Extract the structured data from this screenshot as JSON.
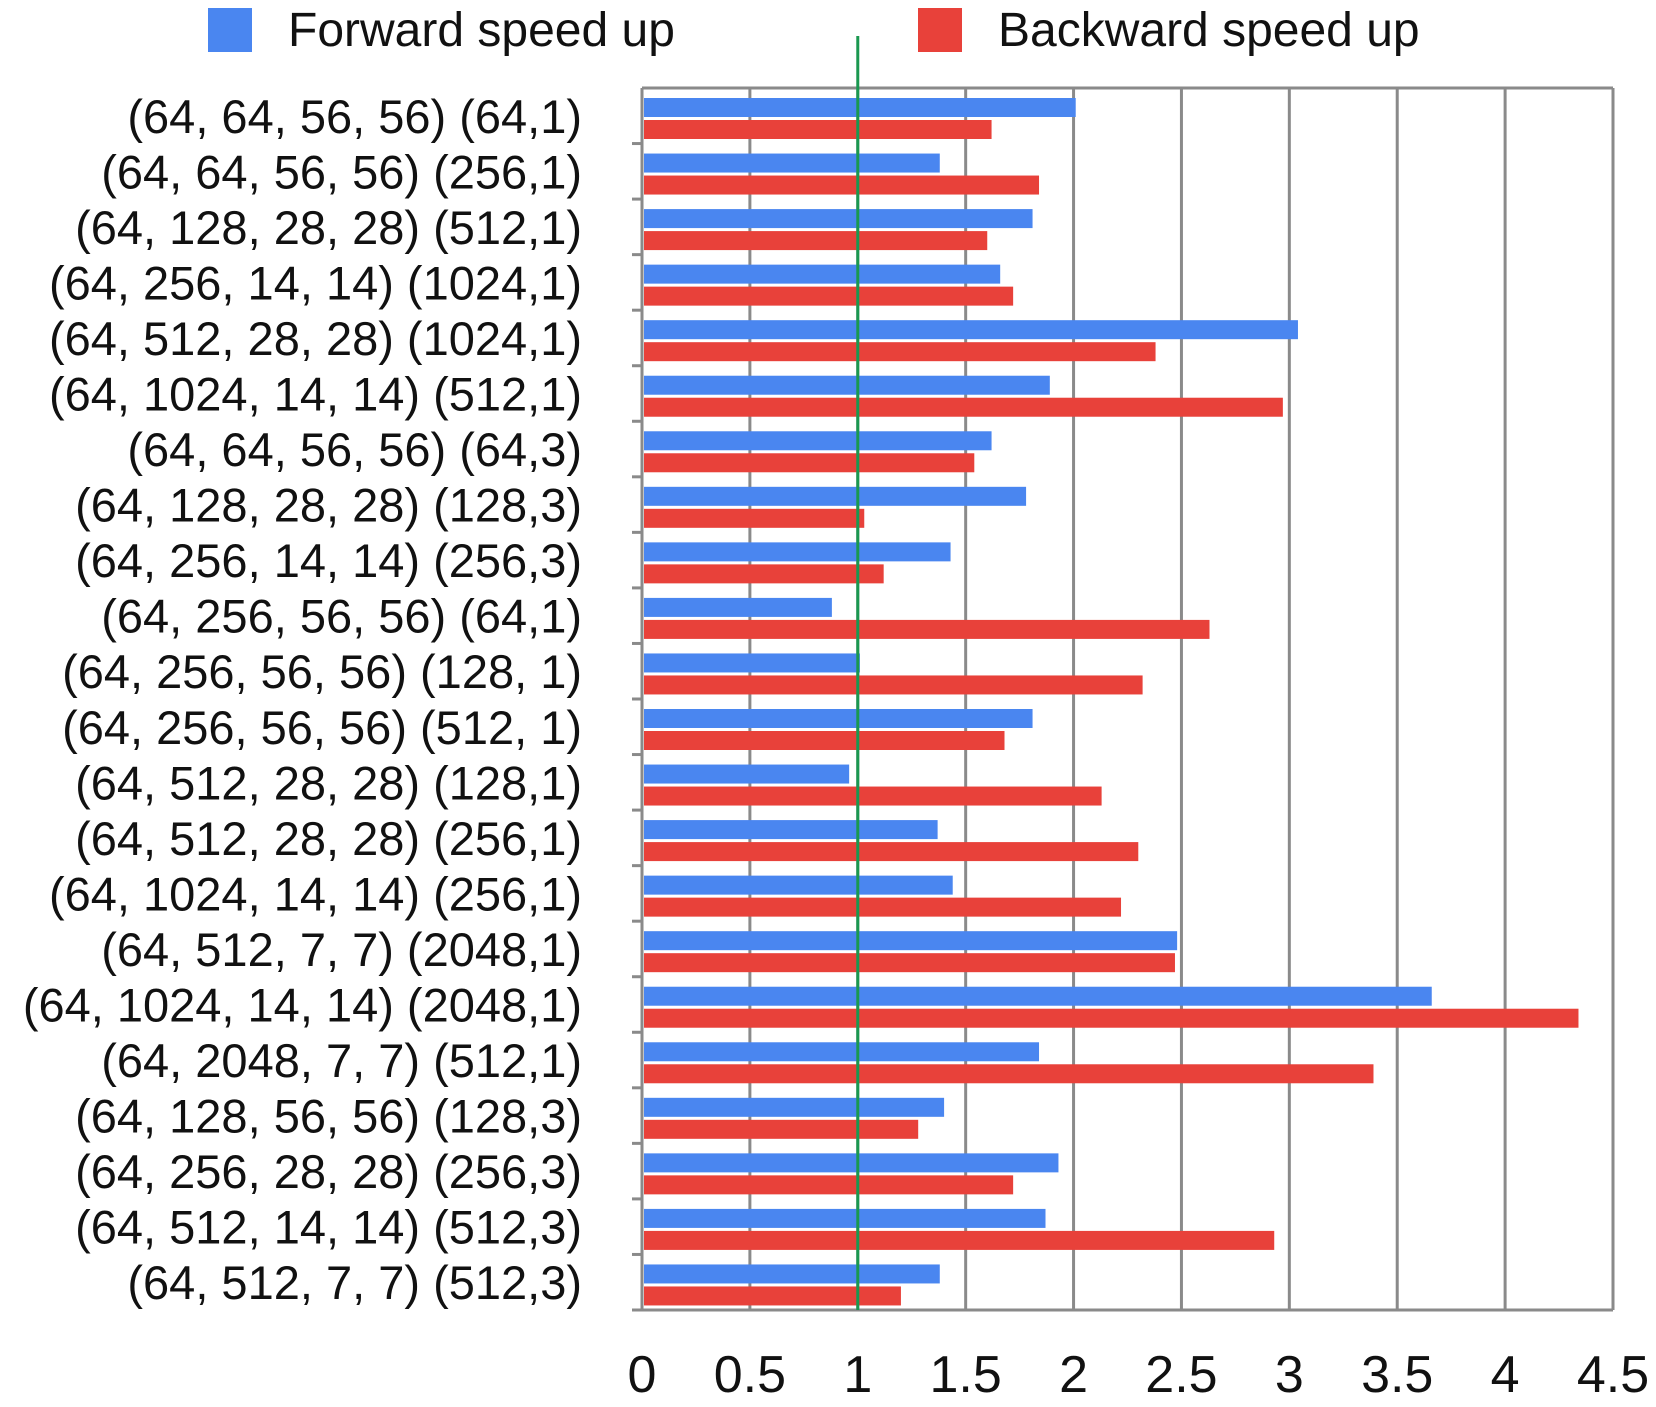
{
  "chart_data": {
    "type": "bar",
    "orientation": "horizontal",
    "title": "",
    "xlabel": "",
    "ylabel": "",
    "xlim": [
      0,
      4.5
    ],
    "xticks": [
      "0",
      "0.5",
      "1",
      "1.5",
      "2",
      "2.5",
      "3",
      "3.5",
      "4",
      "4.5"
    ],
    "grid": "vertical",
    "reference_line": {
      "x": 1,
      "color": "#1a9850"
    },
    "legend_position": "top",
    "categories": [
      "(64, 64, 56, 56) (64,1)",
      "(64, 64, 56, 56) (256,1)",
      "(64, 128, 28, 28) (512,1)",
      "(64, 256, 14, 14) (1024,1)",
      "(64, 512, 28, 28) (1024,1)",
      "(64, 1024, 14, 14) (512,1)",
      "(64, 64, 56, 56) (64,3)",
      "(64, 128, 28, 28) (128,3)",
      "(64, 256, 14, 14) (256,3)",
      "(64, 256, 56, 56) (64,1)",
      "(64, 256, 56, 56) (128, 1)",
      "(64, 256, 56, 56) (512, 1)",
      "(64, 512, 28, 28) (128,1)",
      "(64, 512, 28, 28) (256,1)",
      "(64, 1024, 14, 14) (256,1)",
      "(64, 512, 7, 7) (2048,1)",
      "(64, 1024, 14, 14) (2048,1)",
      "(64, 2048, 7, 7) (512,1)",
      "(64, 128, 56, 56) (128,3)",
      "(64, 256, 28, 28) (256,3)",
      "(64, 512, 14, 14) (512,3)",
      "(64, 512, 7, 7) (512,3)"
    ],
    "series": [
      {
        "name": "Forward speed up",
        "color": "#4a86f0",
        "values": [
          2.01,
          1.38,
          1.81,
          1.66,
          3.04,
          1.89,
          1.62,
          1.78,
          1.43,
          0.88,
          1.01,
          1.81,
          0.96,
          1.37,
          1.44,
          2.48,
          3.66,
          1.84,
          1.4,
          1.93,
          1.87,
          1.38
        ]
      },
      {
        "name": "Backward speed up",
        "color": "#e8413a",
        "values": [
          1.62,
          1.84,
          1.6,
          1.72,
          2.38,
          2.97,
          1.54,
          1.03,
          1.12,
          2.63,
          2.32,
          1.68,
          2.13,
          2.3,
          2.22,
          2.47,
          4.34,
          3.39,
          1.28,
          1.72,
          2.93,
          1.2
        ]
      }
    ]
  }
}
